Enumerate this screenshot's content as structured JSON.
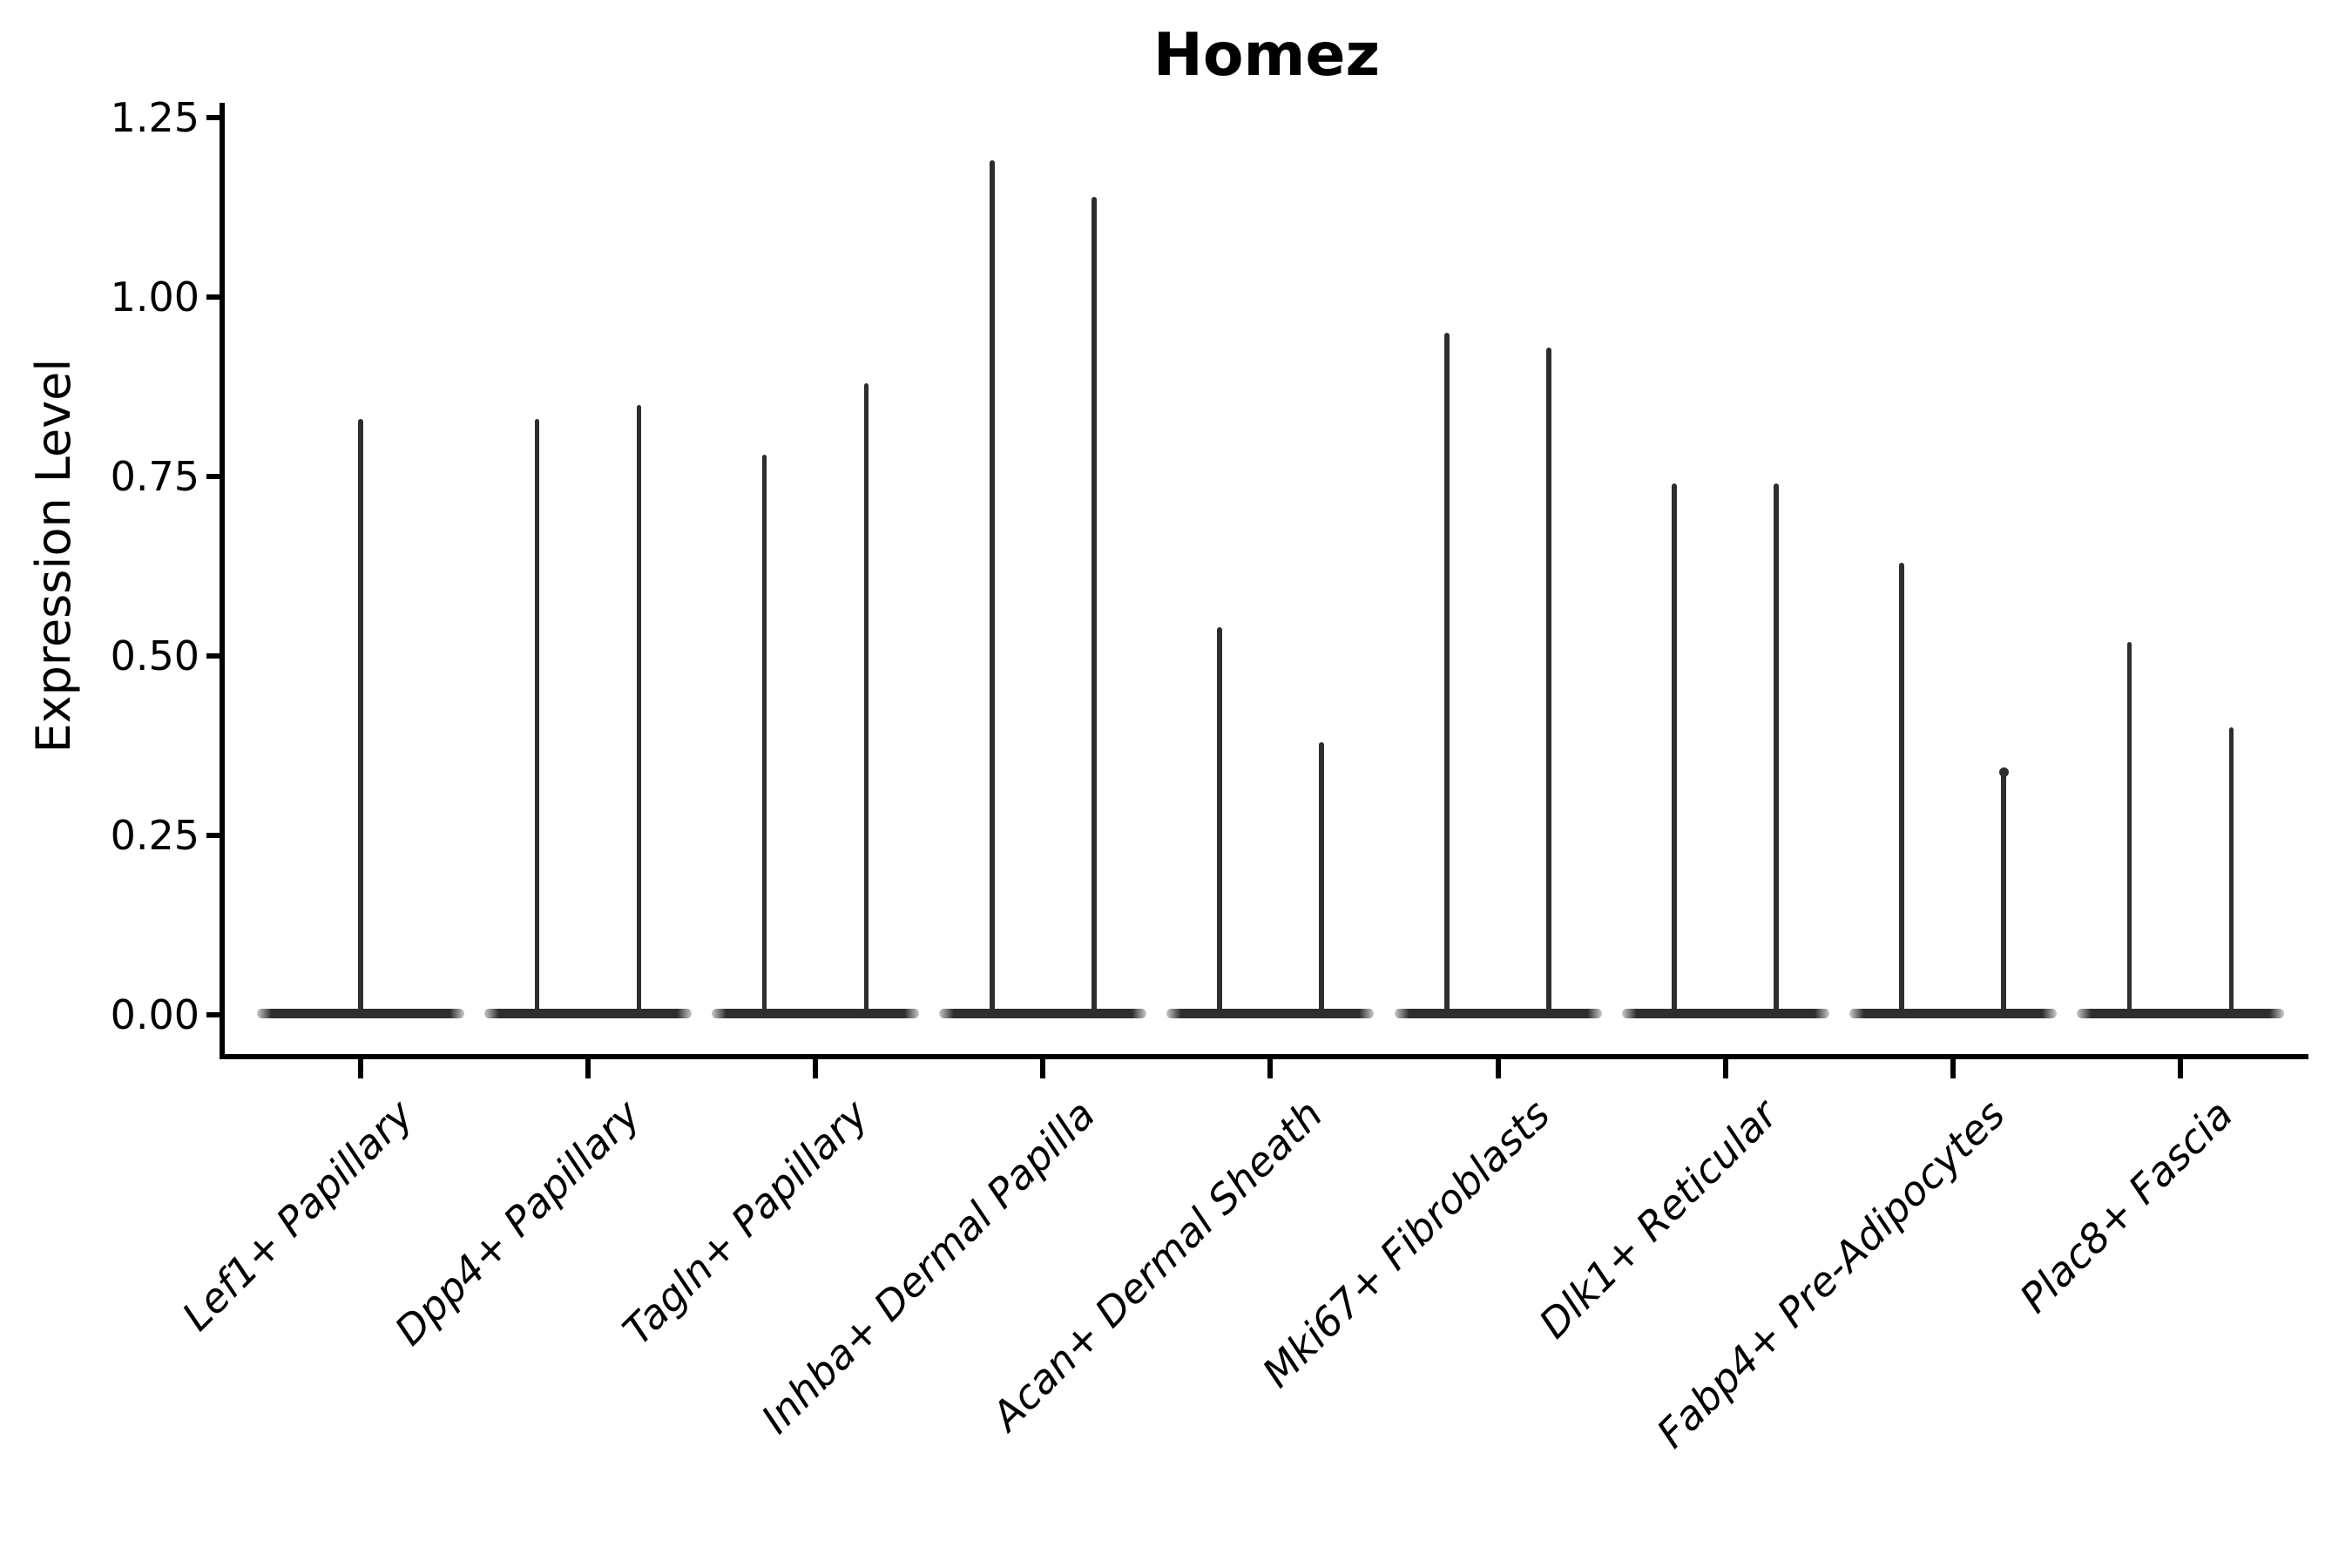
{
  "figure": {
    "background": "#ffffff",
    "axis_color": "#000000"
  },
  "chart_data": {
    "type": "violin",
    "title": "Homez",
    "xlabel": "",
    "ylabel": "Expression Level",
    "ylim": [
      0,
      1.25
    ],
    "ytick_labels": [
      "0.00",
      "0.25",
      "0.50",
      "0.75",
      "1.00",
      "1.25"
    ],
    "ytick_values": [
      0,
      0.25,
      0.5,
      0.75,
      1.0,
      1.25
    ],
    "grid": false,
    "legend": "none",
    "violin_fill": "#2e2e2e",
    "violin_edge": "#1c1c1c",
    "style_note": "Seurat-style violin plot: each violin collapses to a flat dark base at expression 0 with a thin density spike rising to its maximum expression value; first category has a single full-width violin, all others have two adjacent violins",
    "categories": [
      "Lef1+ Papillary",
      "Dpp4+ Papillary",
      "Tagln+ Papillary",
      "Inhba+ Dermal Papilla",
      "Acan+ Dermal Sheath",
      "Mki67+ Fibroblasts",
      "Dlk1+ Reticular",
      "Fabp4+ Pre-Adipocytes",
      "Plac8+ Fascia"
    ],
    "violins": [
      {
        "category": "Lef1+ Papillary",
        "spike_maxima": [
          0.83
        ]
      },
      {
        "category": "Dpp4+ Papillary",
        "spike_maxima": [
          0.83,
          0.85
        ]
      },
      {
        "category": "Tagln+ Papillary",
        "spike_maxima": [
          0.78,
          0.88
        ]
      },
      {
        "category": "Inhba+ Dermal Papilla",
        "spike_maxima": [
          1.19,
          1.14
        ]
      },
      {
        "category": "Acan+ Dermal Sheath",
        "spike_maxima": [
          0.54,
          0.38
        ]
      },
      {
        "category": "Mki67+ Fibroblasts",
        "spike_maxima": [
          0.95,
          0.93
        ]
      },
      {
        "category": "Dlk1+ Reticular",
        "spike_maxima": [
          0.74,
          0.74
        ]
      },
      {
        "category": "Fabp4+ Pre-Adipocytes",
        "spike_maxima": [
          0.63,
          0.34
        ],
        "tip_dot_on": 1
      },
      {
        "category": "Plac8+ Fascia",
        "spike_maxima": [
          0.52,
          0.4
        ]
      }
    ]
  }
}
